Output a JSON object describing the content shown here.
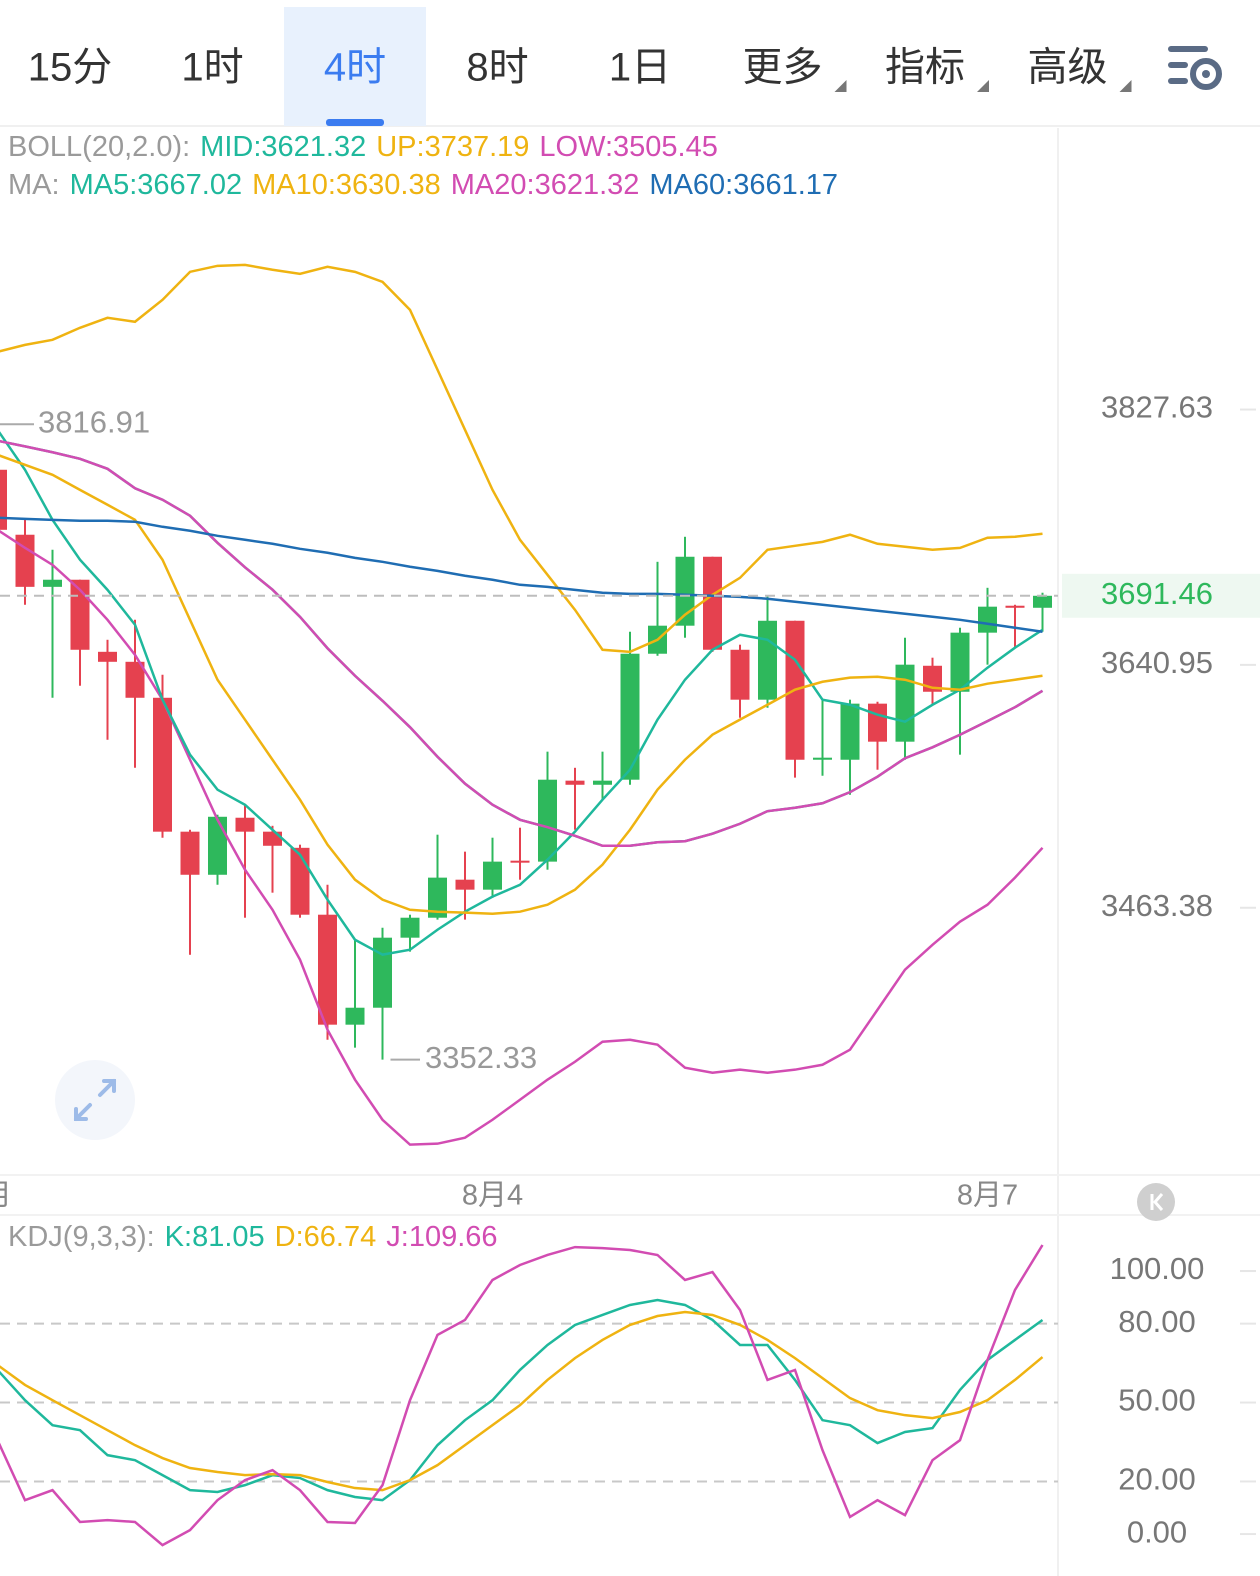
{
  "tabs": {
    "items": [
      "15分",
      "1时",
      "4时",
      "8时",
      "1日",
      "更多",
      "指标",
      "高级"
    ],
    "active": 2
  },
  "chart_data": [
    {
      "type": "candlestick",
      "categories": [
        "月",
        null,
        null,
        null,
        null,
        null,
        null,
        null,
        null,
        null,
        null,
        null,
        null,
        null,
        null,
        null,
        null,
        null,
        "8月4",
        null,
        null,
        null,
        null,
        null,
        null,
        null,
        null,
        null,
        null,
        null,
        null,
        null,
        null,
        null,
        null,
        null,
        "8月7",
        null,
        null
      ],
      "open": [
        3783.6,
        3736.1,
        3698.0,
        3703.2,
        3650.5,
        3643.2,
        3616.9,
        3519.0,
        3487.5,
        3529.2,
        3519.0,
        3507.2,
        3458.3,
        3377.9,
        3390.3,
        3441.5,
        3456.1,
        3483.9,
        3476.6,
        3497.8,
        3497.1,
        3556.3,
        3553.3,
        3557.0,
        3649.1,
        3669.6,
        3720.0,
        3652.0,
        3615.5,
        3673.2,
        3571.6,
        3571.6,
        3612.6,
        3584.8,
        3640.3,
        3621.3,
        3664.5,
        3684.2,
        3682.7
      ],
      "high": [
        3790.9,
        3747.0,
        3725.1,
        3703.2,
        3659.3,
        3673.9,
        3633.7,
        3520.4,
        3531.4,
        3538.7,
        3523.3,
        3509.5,
        3480.2,
        3440.0,
        3448.8,
        3458.3,
        3516.8,
        3504.4,
        3514.6,
        3521.9,
        3577.5,
        3565.7,
        3577.5,
        3665.2,
        3716.3,
        3734.6,
        3720.0,
        3655.7,
        3691.5,
        3673.2,
        3615.5,
        3615.5,
        3614.0,
        3660.8,
        3646.2,
        3668.1,
        3697.3,
        3684.9,
        3693.7
      ],
      "low": [
        3736.1,
        3684.9,
        3616.9,
        3625.7,
        3586.2,
        3565.7,
        3514.6,
        3429.0,
        3480.2,
        3456.1,
        3474.4,
        3456.1,
        3366.9,
        3361.1,
        3352.33,
        3431.3,
        3454.7,
        3454.7,
        3470.7,
        3483.9,
        3491.2,
        3520.4,
        3542.4,
        3553.3,
        3647.6,
        3660.8,
        3650.5,
        3602.3,
        3609.6,
        3558.5,
        3559.9,
        3546.0,
        3564.3,
        3571.6,
        3611.8,
        3575.3,
        3641.1,
        3653.5,
        3665.2
      ],
      "close": [
        3739.7,
        3698.0,
        3703.2,
        3652.0,
        3643.2,
        3616.9,
        3519.0,
        3487.5,
        3529.9,
        3519.0,
        3508.7,
        3458.3,
        3377.9,
        3390.3,
        3441.5,
        3456.1,
        3485.4,
        3476.6,
        3497.1,
        3497.1,
        3557.0,
        3553.3,
        3556.3,
        3649.1,
        3669.6,
        3720.0,
        3652.0,
        3615.5,
        3673.2,
        3571.6,
        3573.1,
        3612.6,
        3584.8,
        3641.1,
        3621.3,
        3664.5,
        3683.5,
        3682.7,
        3691.46
      ],
      "up_color": "#2eb85c",
      "down_color": "#e5414f",
      "indicators": [
        {
          "label": "BOLL(20,2.0):",
          "separator": ":",
          "series": [
            {
              "name": "MID",
              "color": "#1fb89c",
              "latest": 3621.32,
              "values": [
                3804.8,
                3800.7,
                3796.4,
                3791.6,
                3784.3,
                3770.1,
                3761.7,
                3750.0,
                3730.2,
                3712.3,
                3695.9,
                3676.1,
                3653.1,
                3633.0,
                3614.7,
                3595.4,
                3573.8,
                3554.1,
                3538.7,
                3527.7,
                3522.3,
                3516.0,
                3508.7,
                3508.7,
                3511.3,
                3512.0,
                3517.5,
                3524.8,
                3534.0,
                3536.5,
                3539.8,
                3547.9,
                3559.2,
                3572.7,
                3580.7,
                3589.9,
                3599.8,
                3610.0,
                3622.0
              ]
            },
            {
              "name": "UP",
              "color": "#efb311",
              "latest": 3737.19,
              "values": [
                3869.8,
                3874.9,
                3878.6,
                3887.4,
                3894.7,
                3891.8,
                3907.8,
                3928.3,
                3932.7,
                3933.4,
                3929.8,
                3926.8,
                3932.0,
                3928.3,
                3921.0,
                3900.5,
                3856.7,
                3812.8,
                3768.9,
                3732.4,
                3706.8,
                3681.2,
                3652.0,
                3650.5,
                3659.3,
                3677.6,
                3692.2,
                3704.6,
                3725.1,
                3728.0,
                3730.9,
                3736.1,
                3729.5,
                3727.3,
                3725.1,
                3726.5,
                3733.9,
                3734.6,
                3736.8
              ]
            },
            {
              "name": "LOW",
              "color": "#d24cb2",
              "latest": 3505.45,
              "values": [
                3739.7,
                3726.5,
                3714.1,
                3695.8,
                3673.9,
                3648.3,
                3615.5,
                3571.6,
                3527.7,
                3491.2,
                3461.9,
                3425.4,
                3374.2,
                3337.7,
                3308.4,
                3290.2,
                3290.9,
                3295.3,
                3308.4,
                3323.0,
                3337.7,
                3350.8,
                3365.4,
                3366.9,
                3363.3,
                3346.4,
                3342.8,
                3345.0,
                3342.8,
                3345.0,
                3348.6,
                3359.6,
                3388.8,
                3418.1,
                3436.3,
                3453.2,
                3465.6,
                3485.4,
                3507.2
              ]
            }
          ]
        },
        {
          "label": "MA:",
          "separator": ":",
          "series": [
            {
              "name": "MA5",
              "color": "#1fb89c",
              "latest": 3667.02,
              "values": [
                3812.8,
                3783.6,
                3747.0,
                3717.8,
                3695.8,
                3670.3,
                3615.5,
                3575.3,
                3549.7,
                3538.7,
                3520.4,
                3502.2,
                3469.3,
                3440.0,
                3429.1,
                3432.7,
                3447.3,
                3460.5,
                3471.5,
                3480.2,
                3498.5,
                3519.0,
                3542.4,
                3564.3,
                3600.9,
                3630.1,
                3652.0,
                3663.0,
                3659.3,
                3644.7,
                3615.5,
                3611.8,
                3604.5,
                3599.4,
                3611.8,
                3622.8,
                3638.9,
                3653.5,
                3666.6
              ]
            },
            {
              "name": "MA10",
              "color": "#efb311",
              "latest": 3630.38,
              "values": [
                3794.5,
                3787.2,
                3779.9,
                3768.9,
                3758.0,
                3747.0,
                3717.8,
                3673.9,
                3630.1,
                3600.9,
                3571.6,
                3542.4,
                3509.5,
                3483.9,
                3469.3,
                3461.9,
                3460.5,
                3459.8,
                3459.0,
                3460.5,
                3465.6,
                3476.6,
                3494.9,
                3520.4,
                3549.7,
                3571.6,
                3589.9,
                3600.9,
                3611.8,
                3622.8,
                3628.6,
                3631.6,
                3632.3,
                3630.1,
                3624.2,
                3622.8,
                3627.2,
                3630.1,
                3633.0
              ]
            },
            {
              "name": "MA20",
              "color": "#d24cb2",
              "latest": 3621.32,
              "values": [
                3804.8,
                3800.7,
                3796.4,
                3791.6,
                3784.3,
                3770.1,
                3761.7,
                3750.0,
                3730.2,
                3712.3,
                3695.9,
                3676.1,
                3653.1,
                3633.0,
                3614.7,
                3595.4,
                3573.8,
                3554.1,
                3538.7,
                3527.7,
                3522.3,
                3516.0,
                3508.7,
                3508.7,
                3511.3,
                3512.0,
                3517.5,
                3524.8,
                3534.0,
                3536.5,
                3539.8,
                3547.9,
                3559.2,
                3572.7,
                3580.7,
                3589.9,
                3599.8,
                3610.0,
                3622.0
              ]
            },
            {
              "name": "MA60",
              "color": "#1f6db3",
              "latest": 3661.17,
              "values": [
                3748.5,
                3747.7,
                3747.0,
                3746.3,
                3746.3,
                3745.6,
                3741.9,
                3739.0,
                3735.3,
                3732.4,
                3729.5,
                3725.8,
                3722.9,
                3719.2,
                3716.3,
                3712.7,
                3709.7,
                3706.1,
                3703.2,
                3699.5,
                3698.0,
                3695.8,
                3693.7,
                3692.9,
                3692.9,
                3692.2,
                3691.5,
                3690.7,
                3689.3,
                3687.1,
                3684.9,
                3682.7,
                3680.5,
                3678.3,
                3676.1,
                3673.9,
                3671.0,
                3668.1,
                3665.2
              ]
            }
          ]
        }
      ],
      "last_price": 3691.46,
      "high_label": 3816.91,
      "low_label": 3352.33,
      "ylim": [
        3268,
        4032
      ],
      "yticks": [
        3827.63,
        3640.95,
        3463.38
      ]
    },
    {
      "type": "line",
      "legend_label": "KDJ(9,3,3):",
      "separator": ":",
      "series": [
        {
          "name": "K",
          "color": "#1fb89c",
          "latest": 81.05,
          "values": [
            62.4,
            50.9,
            41.4,
            39.5,
            30.0,
            28.1,
            22.4,
            16.7,
            16.0,
            18.6,
            22.4,
            21.3,
            16.7,
            14.1,
            12.9,
            20.5,
            33.8,
            43.3,
            50.9,
            62.4,
            71.9,
            79.5,
            83.3,
            87.1,
            89.0,
            87.1,
            81.4,
            71.9,
            71.9,
            58.6,
            43.3,
            41.4,
            34.6,
            38.8,
            40.3,
            54.8,
            66.2,
            73.8,
            81.4
          ]
        },
        {
          "name": "D",
          "color": "#efb311",
          "latest": 66.74,
          "values": [
            64.3,
            56.7,
            50.9,
            45.2,
            39.5,
            33.8,
            28.9,
            25.1,
            23.6,
            22.4,
            22.8,
            22.4,
            19.8,
            17.5,
            16.7,
            20.5,
            26.2,
            33.8,
            41.4,
            49.0,
            58.6,
            66.9,
            73.8,
            79.5,
            82.9,
            84.4,
            83.3,
            79.5,
            73.8,
            66.9,
            59.3,
            51.7,
            47.1,
            45.2,
            44.1,
            46.4,
            50.9,
            58.6,
            67.3
          ]
        },
        {
          "name": "J",
          "color": "#d24cb2",
          "latest": 109.66,
          "values": [
            35.7,
            12.9,
            16.7,
            4.6,
            5.3,
            4.6,
            -4.2,
            1.5,
            12.9,
            20.5,
            24.3,
            16.7,
            4.6,
            4.2,
            18.6,
            50.9,
            75.7,
            81.4,
            96.6,
            102.3,
            106.1,
            109.1,
            108.7,
            108.0,
            106.1,
            96.6,
            99.6,
            85.2,
            58.6,
            62.4,
            31.9,
            6.5,
            12.9,
            7.2,
            28.1,
            35.7,
            66.2,
            92.8,
            109.9
          ]
        }
      ],
      "ylim": [
        -12.9,
        121.3
      ],
      "yticks": [
        {
          "value": 100,
          "label": "100.00"
        },
        {
          "value": 80,
          "label": "80.00"
        },
        {
          "value": 50,
          "label": "50.00"
        },
        {
          "value": 20,
          "label": "20.00"
        },
        {
          "value": 0,
          "label": "0.00"
        }
      ],
      "grid": [
        80,
        50,
        20
      ]
    }
  ]
}
